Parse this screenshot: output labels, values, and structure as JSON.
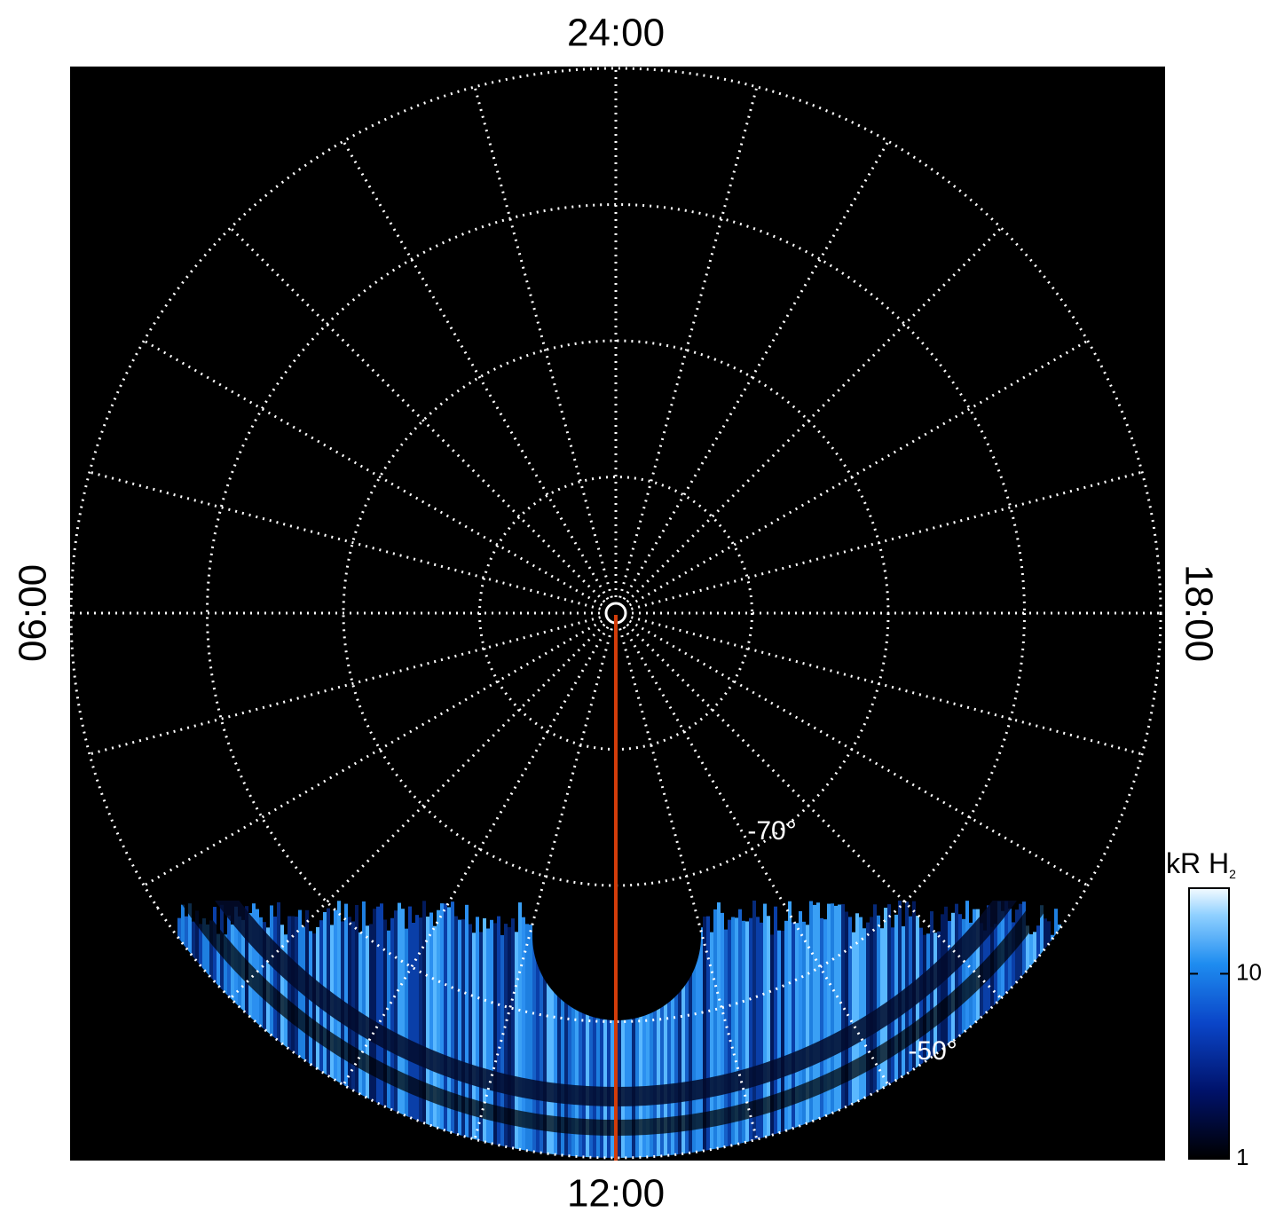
{
  "chart_data": {
    "type": "polar-image",
    "hour_labels": {
      "top": "24:00",
      "bottom": "12:00",
      "left": "06:00",
      "right": "18:00"
    },
    "latitude_labels": [
      {
        "text": "-70°",
        "ring": -70
      },
      {
        "text": "-50°",
        "ring": -50
      }
    ],
    "colorbar": {
      "label": "kR H",
      "label_subscript": "2",
      "log": true,
      "lim": [
        1,
        29
      ],
      "ticks": [
        1,
        10
      ]
    },
    "meridian_color": "#d23c0a"
  }
}
